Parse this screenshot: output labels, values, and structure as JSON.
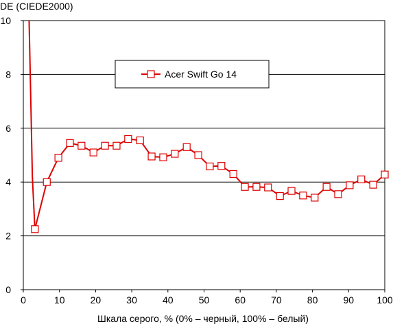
{
  "chart_data": {
    "type": "line",
    "title": "",
    "ylabel": "DE (CIEDE2000)",
    "xlabel": "Шкала серого, % (0% – черный, 100% – белый)",
    "xlim": [
      0,
      100
    ],
    "ylim": [
      0,
      10
    ],
    "x_ticks": [
      0,
      10,
      20,
      30,
      40,
      50,
      60,
      70,
      80,
      90,
      100
    ],
    "y_ticks": [
      0,
      2,
      4,
      6,
      8,
      10
    ],
    "grid": "horizontal",
    "legend_position": "top-center",
    "series": [
      {
        "name": "Acer Swift Go 14",
        "color": "#dd0000",
        "points": [
          [
            1.6,
            10.0
          ],
          [
            1.9,
            8.1
          ],
          [
            2.2,
            6.2
          ],
          [
            2.5,
            4.2
          ],
          [
            3.2,
            2.25
          ],
          [
            6.5,
            4.0
          ],
          [
            9.7,
            4.9
          ],
          [
            12.9,
            5.45
          ],
          [
            16.1,
            5.35
          ],
          [
            19.4,
            5.1
          ],
          [
            22.6,
            5.35
          ],
          [
            25.8,
            5.35
          ],
          [
            29.0,
            5.6
          ],
          [
            32.3,
            5.55
          ],
          [
            35.5,
            4.95
          ],
          [
            38.7,
            4.92
          ],
          [
            41.9,
            5.05
          ],
          [
            45.2,
            5.3
          ],
          [
            48.4,
            5.0
          ],
          [
            51.6,
            4.58
          ],
          [
            54.8,
            4.6
          ],
          [
            58.1,
            4.3
          ],
          [
            61.3,
            3.82
          ],
          [
            64.5,
            3.82
          ],
          [
            67.7,
            3.8
          ],
          [
            71.0,
            3.48
          ],
          [
            74.2,
            3.67
          ],
          [
            77.4,
            3.5
          ],
          [
            80.6,
            3.42
          ],
          [
            83.9,
            3.82
          ],
          [
            87.1,
            3.55
          ],
          [
            90.3,
            3.88
          ],
          [
            93.5,
            4.1
          ],
          [
            96.8,
            3.9
          ],
          [
            100.0,
            4.28
          ]
        ],
        "marker_indices": [
          4,
          5,
          6,
          7,
          8,
          9,
          10,
          11,
          12,
          13,
          14,
          15,
          16,
          17,
          18,
          19,
          20,
          21,
          22,
          23,
          24,
          25,
          26,
          27,
          28,
          29,
          30,
          31,
          32,
          33,
          34
        ]
      }
    ]
  }
}
